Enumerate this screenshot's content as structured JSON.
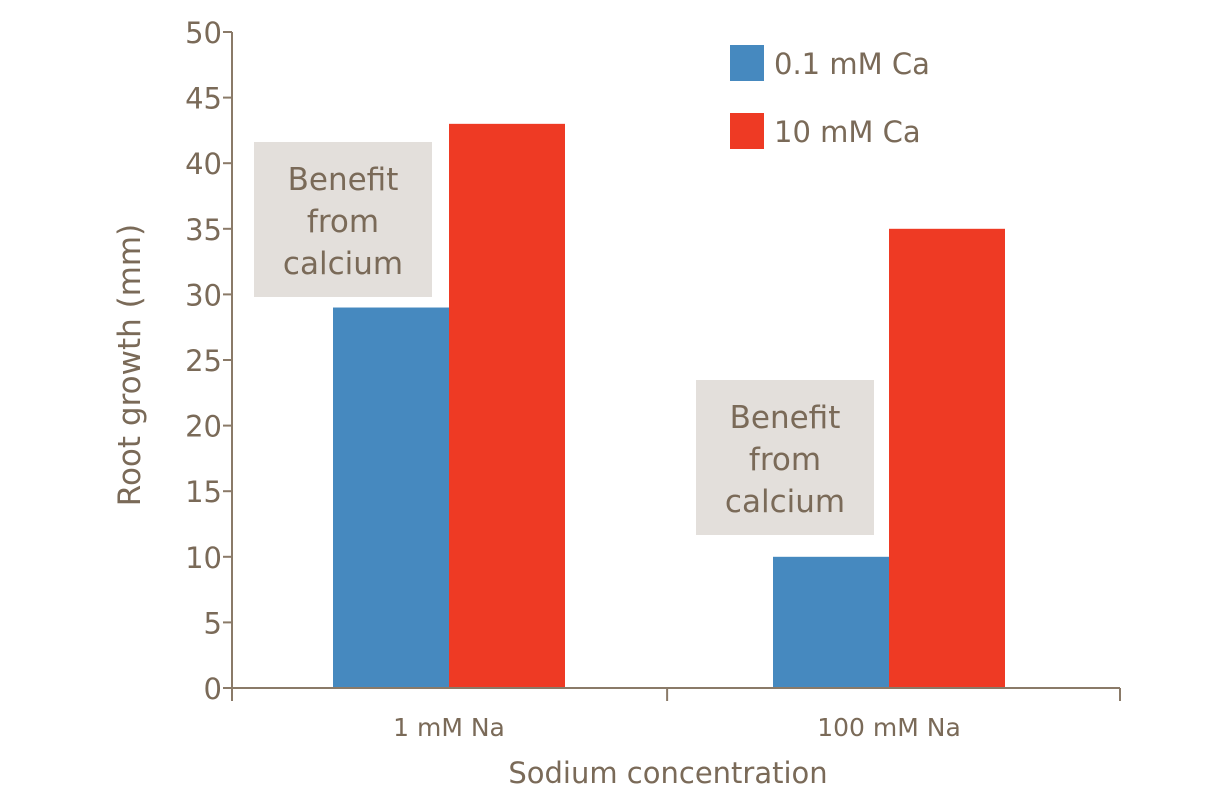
{
  "chart_data": {
    "type": "bar",
    "title": "",
    "xlabel": "Sodium concentration",
    "ylabel": "Root growth (mm)",
    "categories": [
      "1 mM Na",
      "100 mM Na"
    ],
    "series": [
      {
        "name": "0.1 mM Ca",
        "color": "#4689bf",
        "values": [
          29,
          10
        ]
      },
      {
        "name": "10 mM Ca",
        "color": "#ee3a24",
        "values": [
          43,
          35
        ]
      }
    ],
    "ylim": [
      0,
      50
    ],
    "yticks": [
      "0",
      "5",
      "10",
      "15",
      "20",
      "25",
      "30",
      "35",
      "40",
      "45",
      "50"
    ],
    "grid": false,
    "legend": "top-right",
    "annotations": [
      {
        "lines": [
          "Benefit",
          "from",
          "calcium"
        ],
        "category": "1 mM Na"
      },
      {
        "lines": [
          "Benefit",
          "from",
          "calcium"
        ],
        "category": "100 mM Na"
      }
    ],
    "colors": {
      "axis": "#8a7a68",
      "text": "#7a6a58",
      "annotation_box": "#e3dfdb"
    }
  }
}
